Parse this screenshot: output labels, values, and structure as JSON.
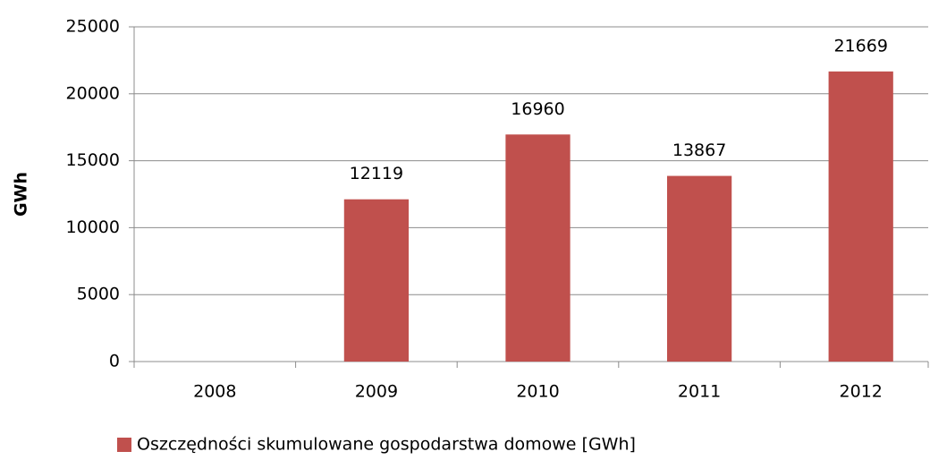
{
  "chart_data": {
    "type": "bar",
    "ylabel": "GWh",
    "categories": [
      "2008",
      "2009",
      "2010",
      "2011",
      "2012"
    ],
    "series": [
      {
        "name": "Oszczędności skumulowane gospodarstwa domowe [GWh]",
        "color": "#c0504d",
        "values": [
          null,
          12119,
          16960,
          13867,
          21669
        ]
      }
    ],
    "ylim": [
      0,
      25000
    ],
    "yticks": [
      0,
      5000,
      10000,
      15000,
      20000,
      25000
    ],
    "grid": true,
    "legend": "bottom",
    "data_labels": true
  }
}
